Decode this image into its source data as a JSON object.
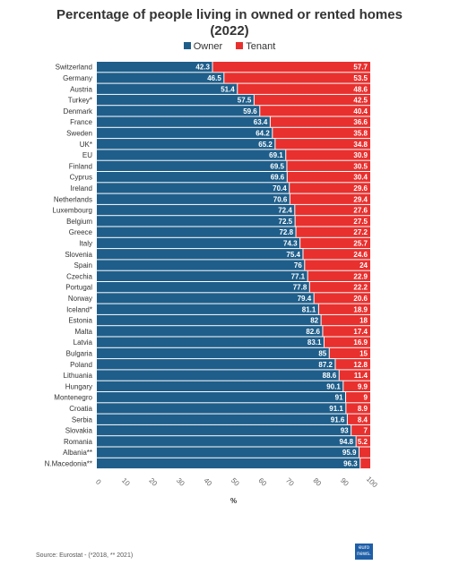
{
  "title_line1": "Percentage of people living in owned or rented homes",
  "title_line2": "(2022)",
  "source": "Source: Eurostat - (*2018, ** 2021)",
  "logo_text_1": "euro",
  "logo_text_2": "news.",
  "chart_data": {
    "type": "bar",
    "orientation": "horizontal",
    "stacked": true,
    "title": "Percentage of people living in owned or rented homes (2022)",
    "xlabel": "%",
    "xlim": [
      0,
      100
    ],
    "xticks": [
      "0",
      "10",
      "20",
      "30",
      "40",
      "50",
      "60",
      "70",
      "80",
      "90",
      "100"
    ],
    "legend_position": "top-center",
    "categories": [
      "Switzerland",
      "Germany",
      "Austria",
      "Turkey*",
      "Denmark",
      "France",
      "Sweden",
      "UK*",
      "EU",
      "Finland",
      "Cyprus",
      "Ireland",
      "Netherlands",
      "Luxembourg",
      "Belgium",
      "Greece",
      "Italy",
      "Slovenia",
      "Spain",
      "Czechia",
      "Portugal",
      "Norway",
      "Iceland*",
      "Estonia",
      "Malta",
      "Latvia",
      "Bulgaria",
      "Poland",
      "Lithuania",
      "Hungary",
      "Montenegro",
      "Croatia",
      "Serbia",
      "Slovakia",
      "Romania",
      "Albania**",
      "N.Macedonia**"
    ],
    "series": [
      {
        "name": "Owner",
        "color": "#1f5e8a",
        "values": [
          42.3,
          46.5,
          51.4,
          57.5,
          59.6,
          63.4,
          64.2,
          65.2,
          69.1,
          69.5,
          69.6,
          70.4,
          70.6,
          72.4,
          72.5,
          72.8,
          74.3,
          75.4,
          76,
          77.1,
          77.8,
          79.4,
          81.1,
          82,
          82.6,
          83.1,
          85,
          87.2,
          88.6,
          90.1,
          91,
          91.1,
          91.6,
          93,
          94.8,
          95.9,
          96.3
        ],
        "labels": [
          "42.3",
          "46.5",
          "51.4",
          "57.5",
          "59.6",
          "63.4",
          "64.2",
          "65.2",
          "69.1",
          "69.5",
          "69.6",
          "70.4",
          "70.6",
          "72.4",
          "72.5",
          "72.8",
          "74.3",
          "75.4",
          "76",
          "77.1",
          "77.8",
          "79.4",
          "81.1",
          "82",
          "82.6",
          "83.1",
          "85",
          "87.2",
          "88.6",
          "90.1",
          "91",
          "91.1",
          "91.6",
          "93",
          "94.8",
          "95.9",
          "96.3"
        ]
      },
      {
        "name": "Tenant",
        "color": "#e8302e",
        "values": [
          57.7,
          53.5,
          48.6,
          42.5,
          40.4,
          36.6,
          35.8,
          34.8,
          30.9,
          30.5,
          30.4,
          29.6,
          29.4,
          27.6,
          27.5,
          27.2,
          25.7,
          24.6,
          24,
          22.9,
          22.2,
          20.6,
          18.9,
          18,
          17.4,
          16.9,
          15,
          12.8,
          11.4,
          9.9,
          9,
          8.9,
          8.4,
          7,
          5.2,
          4.1,
          3.7
        ],
        "labels": [
          "57.7",
          "53.5",
          "48.6",
          "42.5",
          "40.4",
          "36.6",
          "35.8",
          "34.8",
          "30.9",
          "30.5",
          "30.4",
          "29.6",
          "29.4",
          "27.6",
          "27.5",
          "27.2",
          "25.7",
          "24.6",
          "24",
          "22.9",
          "22.2",
          "20.6",
          "18.9",
          "18",
          "17.4",
          "16.9",
          "15",
          "12.8",
          "11.4",
          "9.9",
          "9",
          "8.9",
          "8.4",
          "7",
          "5.2",
          "",
          ""
        ]
      }
    ]
  }
}
